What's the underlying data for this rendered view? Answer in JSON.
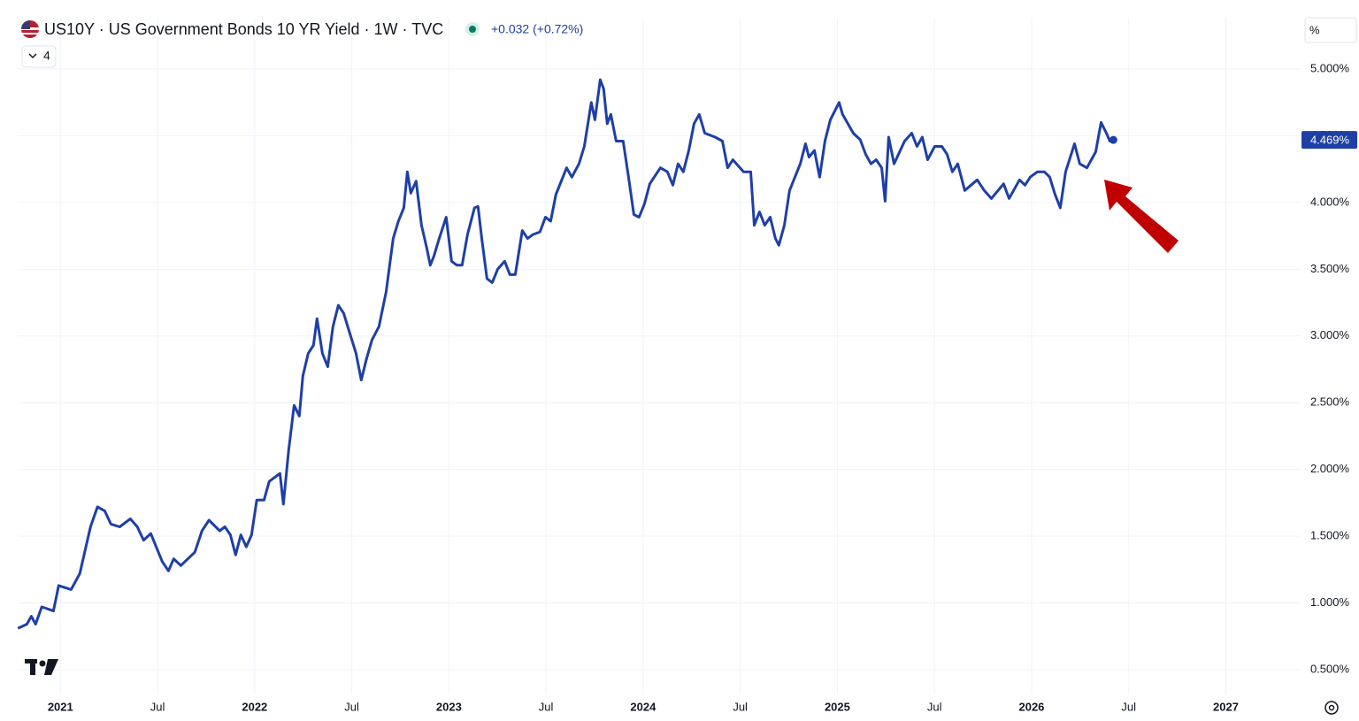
{
  "chart_data": {
    "type": "line",
    "title": "US10Y · US Government Bonds 10 YR Yield · 1W · TVC",
    "change_label": "+0.032 (+0.72%)",
    "indicator_count": "4",
    "scale_mode": "%",
    "color": "#1e3fa6",
    "grid": true,
    "x": [
      2020.781,
      2020.827,
      2020.85,
      2020.872,
      2020.904,
      2020.964,
      2020.991,
      2021.055,
      2021.1,
      2021.155,
      2021.191,
      2021.228,
      2021.26,
      2021.305,
      2021.36,
      2021.396,
      2021.428,
      2021.465,
      2021.524,
      2021.556,
      2021.583,
      2021.62,
      2021.692,
      2021.729,
      2021.765,
      2021.82,
      2021.847,
      2021.875,
      2021.902,
      2021.929,
      2021.957,
      2021.984,
      2022.011,
      2022.048,
      2022.075,
      2022.13,
      2022.148,
      2022.175,
      2022.203,
      2022.23,
      2022.248,
      2022.276,
      2022.303,
      2022.321,
      2022.349,
      2022.376,
      2022.403,
      2022.431,
      2022.458,
      2022.494,
      2022.522,
      2022.549,
      2022.576,
      2022.604,
      2022.64,
      2022.677,
      2022.713,
      2022.74,
      2022.768,
      2022.786,
      2022.804,
      2022.831,
      2022.859,
      2022.886,
      2022.904,
      2022.923,
      2022.95,
      2022.986,
      2023.014,
      2023.041,
      2023.068,
      2023.096,
      2023.132,
      2023.15,
      2023.169,
      2023.196,
      2023.223,
      2023.251,
      2023.287,
      2023.314,
      2023.342,
      2023.378,
      2023.405,
      2023.433,
      2023.469,
      2023.497,
      2023.524,
      2023.551,
      2023.606,
      2023.633,
      2023.67,
      2023.697,
      2023.733,
      2023.752,
      2023.779,
      2023.797,
      2023.815,
      2023.834,
      2023.861,
      2023.897,
      2023.925,
      2023.952,
      2023.979,
      2024.007,
      2024.034,
      2024.089,
      2024.125,
      2024.153,
      2024.18,
      2024.207,
      2024.235,
      2024.262,
      2024.289,
      2024.317,
      2024.371,
      2024.408,
      2024.435,
      2024.462,
      2024.517,
      2024.554,
      2024.572,
      2024.599,
      2024.626,
      2024.654,
      2024.681,
      2024.699,
      2024.727,
      2024.754,
      2024.809,
      2024.836,
      2024.854,
      2024.882,
      2024.909,
      2024.936,
      2024.964,
      2025.009,
      2025.027,
      2025.082,
      2025.118,
      2025.146,
      2025.173,
      2025.2,
      2025.228,
      2025.246,
      2025.264,
      2025.292,
      2025.346,
      2025.383,
      2025.41,
      2025.437,
      2025.465,
      2025.501,
      2025.538,
      2025.565,
      2025.592,
      2025.62,
      2025.656,
      2025.72,
      2025.756,
      2025.793,
      2025.856,
      2025.884,
      2025.938,
      2025.966,
      2025.993,
      2026.03,
      2026.066,
      2026.093,
      2026.121,
      2026.148,
      2026.175,
      2026.221,
      2026.248,
      2026.285,
      2026.33,
      2026.358,
      2026.385,
      2026.403,
      2026.421
    ],
    "values": [
      0.81,
      0.84,
      0.9,
      0.84,
      0.97,
      0.94,
      1.13,
      1.1,
      1.22,
      1.57,
      1.72,
      1.69,
      1.59,
      1.57,
      1.63,
      1.57,
      1.47,
      1.52,
      1.31,
      1.24,
      1.33,
      1.28,
      1.38,
      1.54,
      1.62,
      1.54,
      1.57,
      1.51,
      1.36,
      1.51,
      1.42,
      1.51,
      1.77,
      1.77,
      1.91,
      1.97,
      1.74,
      2.14,
      2.48,
      2.4,
      2.7,
      2.87,
      2.93,
      3.13,
      2.87,
      2.77,
      3.07,
      3.23,
      3.17,
      3.0,
      2.87,
      2.67,
      2.83,
      2.97,
      3.07,
      3.33,
      3.73,
      3.86,
      3.96,
      4.23,
      4.07,
      4.16,
      3.83,
      3.66,
      3.53,
      3.6,
      3.73,
      3.89,
      3.56,
      3.53,
      3.53,
      3.76,
      3.96,
      3.97,
      3.73,
      3.43,
      3.4,
      3.5,
      3.56,
      3.46,
      3.46,
      3.79,
      3.73,
      3.76,
      3.78,
      3.89,
      3.86,
      4.06,
      4.26,
      4.19,
      4.29,
      4.42,
      4.75,
      4.62,
      4.92,
      4.85,
      4.59,
      4.66,
      4.46,
      4.46,
      4.19,
      3.91,
      3.89,
      3.99,
      4.14,
      4.26,
      4.23,
      4.13,
      4.29,
      4.23,
      4.39,
      4.59,
      4.66,
      4.52,
      4.49,
      4.46,
      4.26,
      4.32,
      4.23,
      4.23,
      3.83,
      3.93,
      3.83,
      3.89,
      3.73,
      3.68,
      3.83,
      4.09,
      4.29,
      4.44,
      4.34,
      4.39,
      4.19,
      4.46,
      4.62,
      4.75,
      4.66,
      4.52,
      4.47,
      4.36,
      4.29,
      4.32,
      4.26,
      4.01,
      4.49,
      4.29,
      4.46,
      4.52,
      4.42,
      4.49,
      4.32,
      4.42,
      4.42,
      4.36,
      4.23,
      4.29,
      4.09,
      4.17,
      4.09,
      4.03,
      4.14,
      4.03,
      4.17,
      4.13,
      4.19,
      4.23,
      4.23,
      4.19,
      4.06,
      3.96,
      4.23,
      4.44,
      4.29,
      4.26,
      4.38,
      4.6,
      4.52,
      4.46,
      4.469
    ],
    "last_price": {
      "value": 4.469,
      "label": "4.469%"
    },
    "xlim": [
      2020.78,
      2027.385
    ],
    "ylim": [
      0.314,
      5.219
    ],
    "xticks": [
      2021,
      {
        "value": 2021.5,
        "label": "Jul"
      },
      2022,
      {
        "value": 2022.5,
        "label": "Jul"
      },
      2023,
      {
        "value": 2023.5,
        "label": "Jul"
      },
      2024,
      {
        "value": 2024.5,
        "label": "Jul"
      },
      2025,
      {
        "value": 2025.5,
        "label": "Jul"
      },
      2026,
      {
        "value": 2026.5,
        "label": "Jul"
      },
      2027
    ],
    "yticks": [
      {
        "value": 0.5,
        "label": "0.500%"
      },
      {
        "value": 1,
        "label": "1.000%"
      },
      {
        "value": 1.5,
        "label": "1.500%"
      },
      {
        "value": 2,
        "label": "2.000%"
      },
      {
        "value": 2.5,
        "label": "2.500%"
      },
      {
        "value": 3,
        "label": "3.000%"
      },
      {
        "value": 3.5,
        "label": "3.500%"
      },
      {
        "value": 4,
        "label": "4.000%"
      },
      {
        "value": 4.5,
        "label": "4.500%"
      },
      {
        "value": 5,
        "label": "5.000%"
      }
    ]
  }
}
